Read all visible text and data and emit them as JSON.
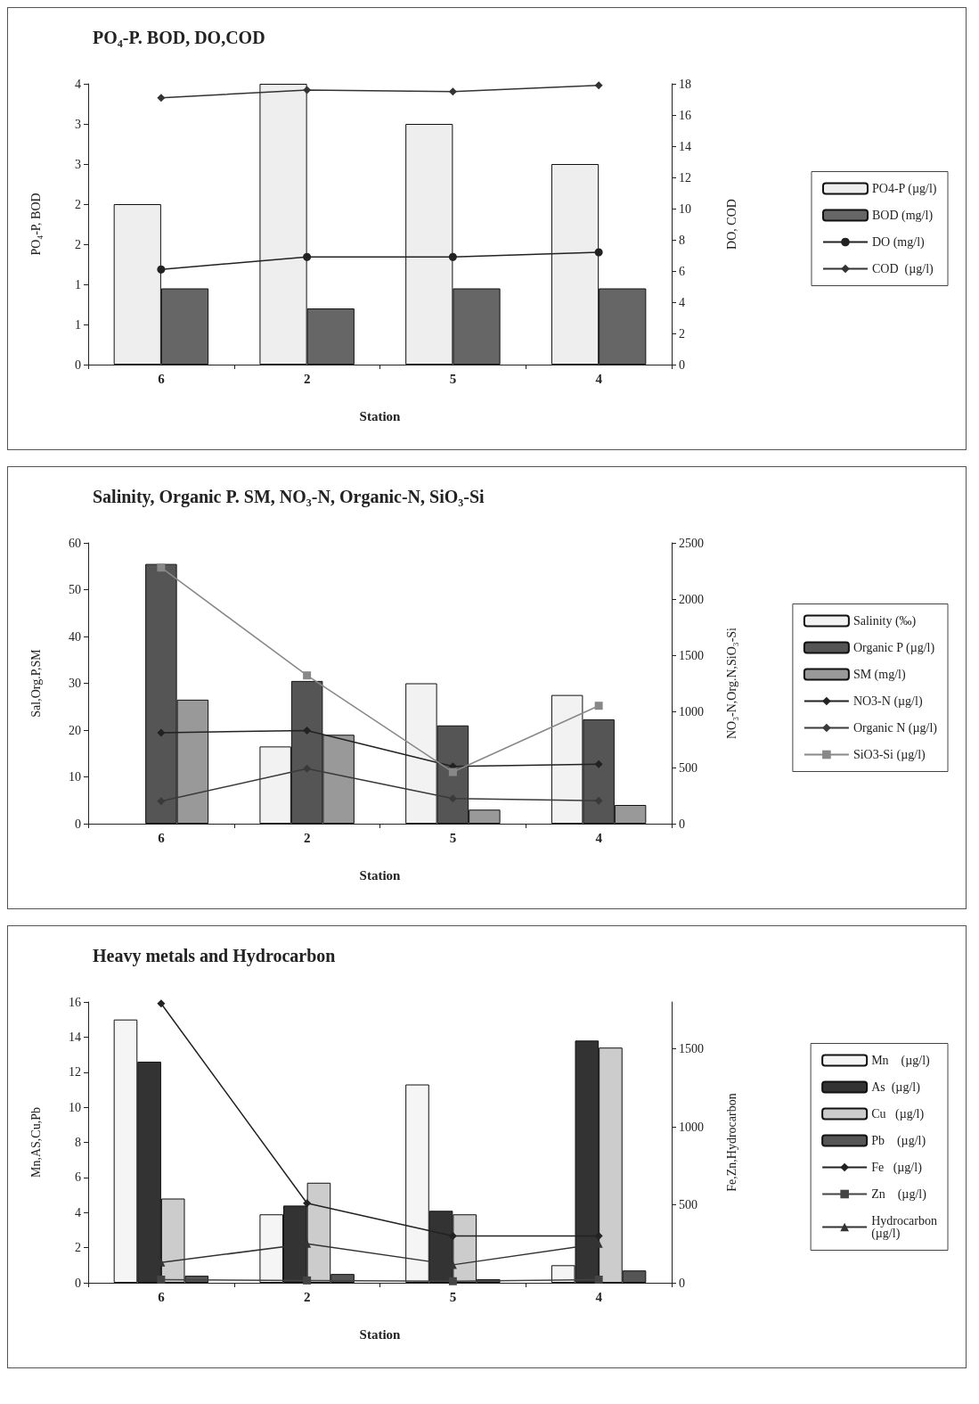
{
  "chart_data": [
    {
      "type": "bar",
      "title": "PO₄-P. BOD, DO,COD",
      "xlabel": "Station",
      "ylabel": "PO₄-P, BOD",
      "y2label": "DO, COD",
      "categories": [
        "6",
        "2",
        "5",
        "4"
      ],
      "series": [
        {
          "name": "PO4-P (µg/l)",
          "color": "#eeeeee",
          "values": [
            2.0,
            3.5,
            3.0,
            2.5
          ]
        },
        {
          "name": "BOD (mg/l)",
          "color": "#666666",
          "values": [
            0.95,
            0.7,
            0.95,
            0.95
          ]
        },
        {
          "name": "DO (mg/l)",
          "type": "line",
          "axis": "y2",
          "marker": "circle",
          "color": "#222222",
          "values": [
            6.1,
            6.9,
            6.9,
            7.2
          ]
        },
        {
          "name": "COD  (µg/l)",
          "type": "line",
          "axis": "y2",
          "marker": "diamond",
          "color": "#333333",
          "values": [
            17.1,
            17.6,
            17.5,
            17.9
          ]
        }
      ],
      "ylim": [
        0,
        3.5
      ],
      "yticks": [
        0,
        {
          "value": 0.5,
          "label": "1"
        },
        1,
        {
          "value": 1.5,
          "label": "2"
        },
        2,
        {
          "value": 2.5,
          "label": "3"
        },
        3,
        {
          "value": 3.5,
          "label": "4"
        }
      ],
      "y2lim": [
        0,
        18
      ],
      "y2ticks": [
        0,
        2,
        4,
        6,
        8,
        10,
        12,
        14,
        16,
        18
      ],
      "legend": "right",
      "grid": false
    },
    {
      "type": "bar",
      "title": "Salinity, Organic P. SM, NO₃-N, Organic-N, SiO₃-Si",
      "xlabel": "Station",
      "ylabel": "Sal,Org.P,SM",
      "y2label": "NO₃-N,Org.N,SiO₃-Si",
      "categories": [
        "6",
        "2",
        "5",
        "4"
      ],
      "series": [
        {
          "name": "Salinity (‰)",
          "color": "#f2f2f2",
          "values": [
            null,
            16.5,
            30,
            27.5
          ]
        },
        {
          "name": "Organic P (µg/l)",
          "color": "#555555",
          "values": [
            55.5,
            30.5,
            21,
            22.3
          ]
        },
        {
          "name": "SM (mg/l)",
          "color": "#999999",
          "values": [
            26.5,
            19,
            3,
            4
          ]
        },
        {
          "name": "NO3-N (µg/l)",
          "type": "line",
          "axis": "y2",
          "marker": "diamond",
          "color": "#222222",
          "values": [
            810,
            830,
            510,
            530
          ]
        },
        {
          "name": "Organic N (µg/l)",
          "type": "line",
          "axis": "y2",
          "marker": "diamond",
          "color": "#3a3a3a",
          "values": [
            200,
            490,
            225,
            205
          ]
        },
        {
          "name": "SiO3-Si (µg/l)",
          "type": "line",
          "axis": "y2",
          "marker": "square",
          "color": "#888888",
          "values": [
            2280,
            1320,
            460,
            1050
          ]
        }
      ],
      "ylim": [
        0,
        60
      ],
      "yticks": [
        0,
        10,
        20,
        30,
        40,
        50,
        60
      ],
      "y2lim": [
        0,
        2500
      ],
      "y2ticks": [
        0,
        500,
        1000,
        1500,
        2000,
        2500
      ],
      "legend": "right",
      "grid": false
    },
    {
      "type": "bar",
      "title": "Heavy metals and Hydrocarbon",
      "xlabel": "Station",
      "ylabel": "Mn,AS,Cu,Pb",
      "y2label": "Fe,Zn,Hydrocarbon",
      "categories": [
        "6",
        "2",
        "5",
        "4"
      ],
      "series": [
        {
          "name": "Mn    (µg/l)",
          "color": "#f5f5f5",
          "values": [
            15,
            3.9,
            11.3,
            1.0
          ]
        },
        {
          "name": "As  (µg/l)",
          "color": "#333333",
          "values": [
            12.6,
            4.4,
            4.1,
            13.8
          ]
        },
        {
          "name": "Cu   (µg/l)",
          "color": "#cccccc",
          "values": [
            4.8,
            5.7,
            3.9,
            13.4
          ]
        },
        {
          "name": "Pb    (µg/l)",
          "color": "#555555",
          "values": [
            0.4,
            0.5,
            0.2,
            0.7
          ]
        },
        {
          "name": "Fe   (µg/l)",
          "type": "line",
          "axis": "y2",
          "marker": "diamond",
          "color": "#222222",
          "values": [
            1790,
            510,
            300,
            300
          ]
        },
        {
          "name": "Zn    (µg/l)",
          "type": "line",
          "axis": "y2",
          "marker": "square",
          "color": "#444444",
          "values": [
            20,
            15,
            10,
            20
          ]
        },
        {
          "name": "Hydrocarbon\n(µg/l)",
          "type": "line",
          "axis": "y2",
          "marker": "triangle",
          "color": "#333333",
          "values": [
            130,
            250,
            115,
            250
          ]
        }
      ],
      "ylim": [
        0,
        16
      ],
      "yticks": [
        0,
        2,
        4,
        6,
        8,
        10,
        12,
        14,
        16
      ],
      "y2lim": [
        0,
        1800
      ],
      "y2ticks": [
        0,
        500,
        1000,
        1500
      ],
      "legend": "right",
      "grid": false
    }
  ]
}
